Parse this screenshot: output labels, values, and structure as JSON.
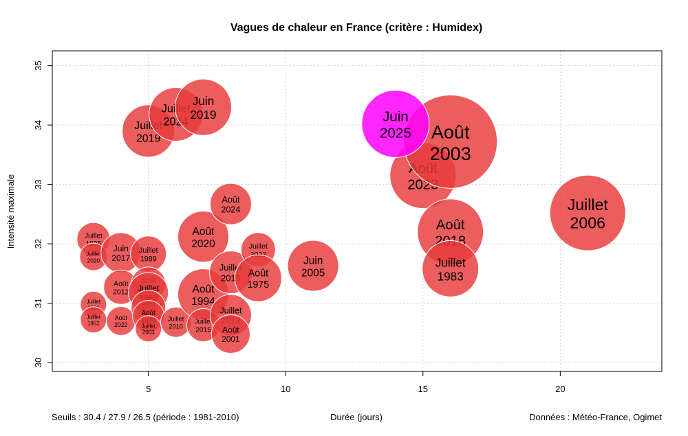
{
  "chart_data": {
    "type": "scatter",
    "title": "Vagues de chaleur en France (critère : Humidex)",
    "xlabel": "Durée (jours)",
    "ylabel": "Intensité maximale",
    "xlim": [
      1.5,
      23.7
    ],
    "ylim": [
      29.85,
      35.25
    ],
    "x_ticks": [
      5,
      10,
      15,
      20
    ],
    "y_ticks": [
      30,
      31,
      32,
      33,
      34,
      35
    ],
    "grid": true,
    "footer_left": "Seuils : 30.4 / 27.9 / 26.5 (période : 1981-2010)",
    "footer_right": "Données : Météo-France, Ogimet",
    "colors": {
      "normal": "#e8393a",
      "highlight": "#ff00ff"
    },
    "points": [
      {
        "month": "Juillet",
        "year": "1995",
        "x": 3,
        "y": 32.08,
        "r": 24
      },
      {
        "month": "Juillet",
        "year": "2020",
        "x": 3,
        "y": 31.78,
        "r": 20
      },
      {
        "month": "Juillet",
        "year": "1991",
        "x": 3,
        "y": 30.98,
        "r": 19
      },
      {
        "month": "Juillet",
        "year": "1952",
        "x": 3,
        "y": 30.72,
        "r": 19
      },
      {
        "month": "Juin",
        "year": "2017",
        "x": 4,
        "y": 31.85,
        "r": 29
      },
      {
        "month": "Août",
        "year": "2012",
        "x": 4,
        "y": 31.27,
        "r": 25
      },
      {
        "month": "Août",
        "year": "2022",
        "x": 4,
        "y": 30.7,
        "r": 21
      },
      {
        "month": "Juillet",
        "year": "1989",
        "x": 5,
        "y": 31.83,
        "r": 26
      },
      {
        "month": "Août",
        "year": "1990",
        "x": 5,
        "y": 31.32,
        "r": 25
      },
      {
        "month": "Juillet",
        "year": "1983",
        "x": 5,
        "y": 31.18,
        "r": 29
      },
      {
        "month": "Août",
        "year": "1992",
        "x": 5,
        "y": 30.93,
        "r": 25
      },
      {
        "month": "Août",
        "year": "1998",
        "x": 5,
        "y": 30.78,
        "r": 23
      },
      {
        "month": "Juillet",
        "year": "2003",
        "x": 5,
        "y": 30.57,
        "r": 19
      },
      {
        "month": "Juillet",
        "year": "2019",
        "x": 5,
        "y": 33.9,
        "r": 38
      },
      {
        "month": "Juillet",
        "year": "2024",
        "x": 6,
        "y": 34.18,
        "r": 39
      },
      {
        "month": "Juillet",
        "year": "2010",
        "x": 6,
        "y": 30.68,
        "r": 22
      },
      {
        "month": "Juin",
        "year": "2019",
        "x": 7,
        "y": 34.3,
        "r": 41
      },
      {
        "month": "Août",
        "year": "2020",
        "x": 7,
        "y": 32.12,
        "r": 37
      },
      {
        "month": "Août",
        "year": "1994",
        "x": 7,
        "y": 31.15,
        "r": 37
      },
      {
        "month": "Juillet",
        "year": "2015",
        "x": 7,
        "y": 30.63,
        "r": 24
      },
      {
        "month": "Août",
        "year": "2024",
        "x": 8,
        "y": 32.67,
        "r": 30
      },
      {
        "month": "Juillet",
        "year": "2015",
        "x": 8,
        "y": 31.52,
        "r": 31
      },
      {
        "month": "Juillet",
        "year": "2013",
        "x": 8,
        "y": 30.8,
        "r": 30
      },
      {
        "month": "Août",
        "year": "2001",
        "x": 8,
        "y": 30.48,
        "r": 28
      },
      {
        "month": "Juillet",
        "year": "2022",
        "x": 9,
        "y": 31.9,
        "r": 25
      },
      {
        "month": "Août",
        "year": "1975",
        "x": 9,
        "y": 31.42,
        "r": 34
      },
      {
        "month": "Juin",
        "year": "2005",
        "x": 11,
        "y": 31.63,
        "r": 37
      },
      {
        "month": "Août",
        "year": "2023",
        "x": 15,
        "y": 33.15,
        "r": 48
      },
      {
        "month": "Août",
        "year": "2018",
        "x": 16,
        "y": 32.2,
        "r": 48
      },
      {
        "month": "Juillet",
        "year": "1983",
        "x": 16,
        "y": 31.58,
        "r": 41
      },
      {
        "month": "Août",
        "year": "2003",
        "x": 16,
        "y": 33.72,
        "r": 68
      },
      {
        "month": "Juillet",
        "year": "2006",
        "x": 21,
        "y": 32.52,
        "r": 55
      },
      {
        "month": "Juin",
        "year": "2025",
        "x": 14,
        "y": 34.02,
        "r": 49,
        "highlight": true
      }
    ]
  }
}
